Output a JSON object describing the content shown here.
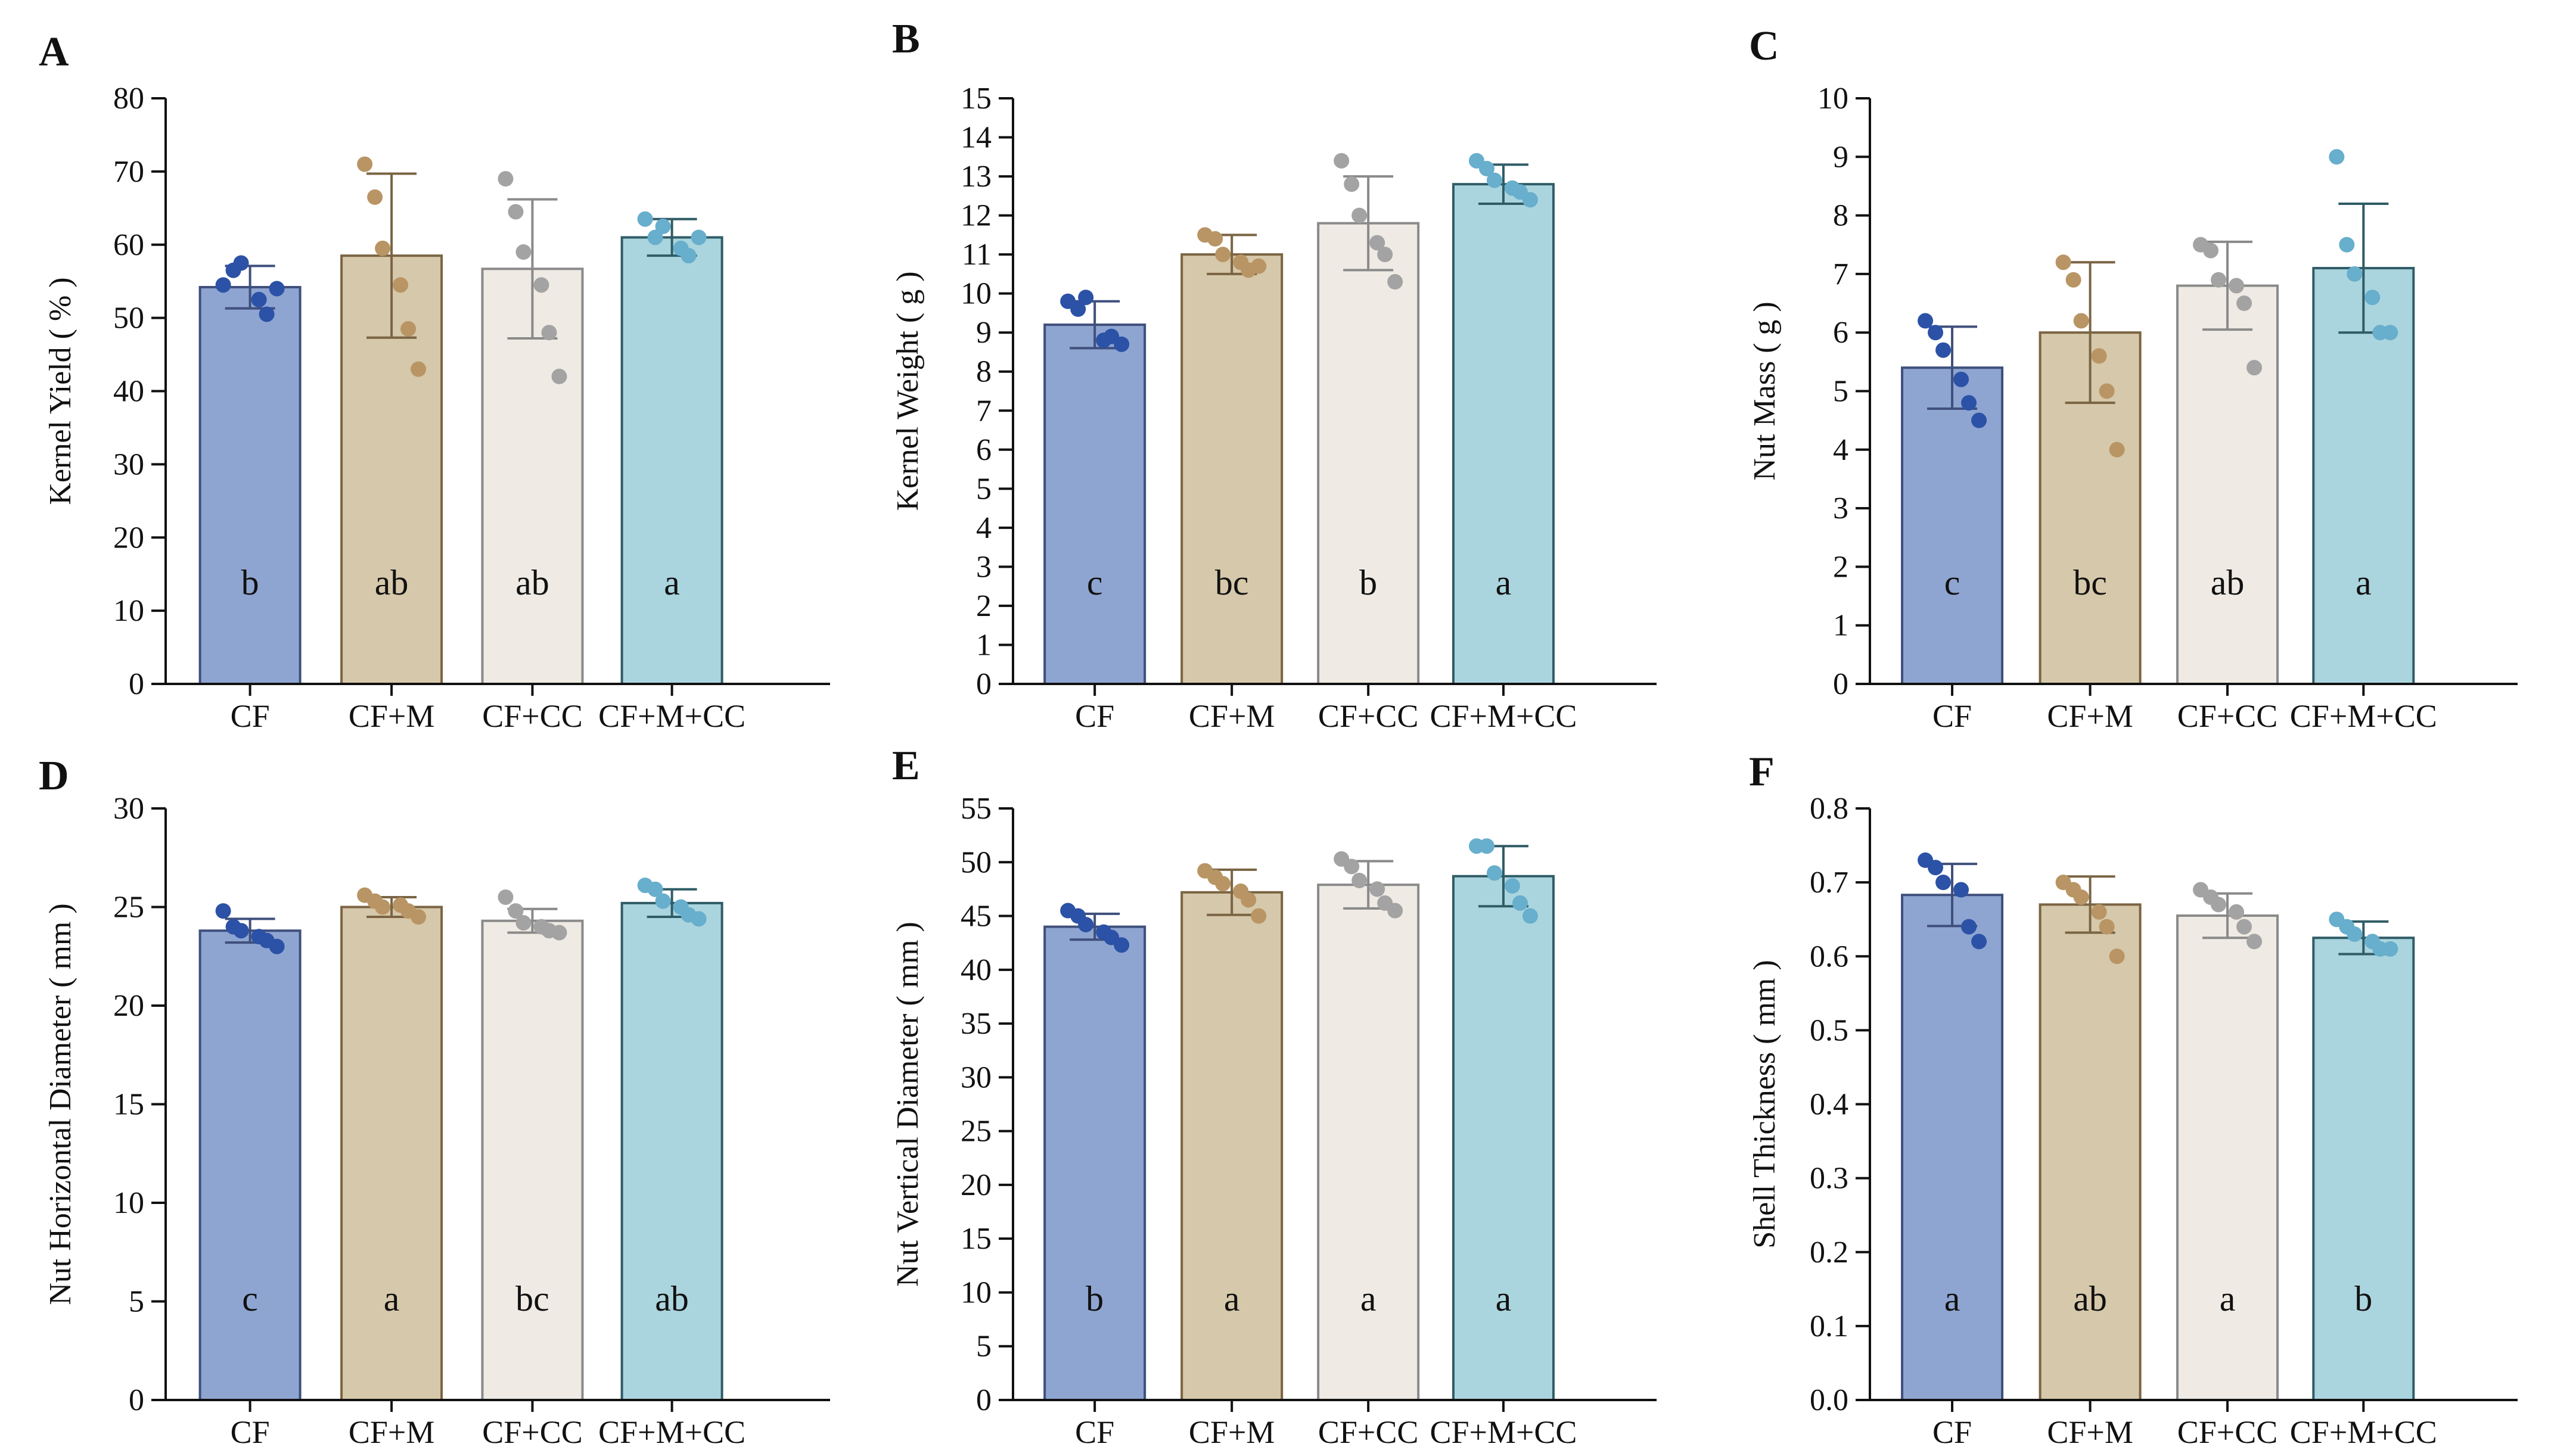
{
  "figure": {
    "groups": [
      "CF",
      "CF+M",
      "CF+CC",
      "CF+M+CC"
    ],
    "colors": {
      "fills": [
        "#8fa5d1",
        "#d6c8aa",
        "#efebe4",
        "#abd5de"
      ],
      "strokes": [
        "#3f4f7c",
        "#7a6443",
        "#8a8a8a",
        "#2f5c66"
      ],
      "dots": [
        "#2b52a6",
        "#b99565",
        "#a3a3a3",
        "#68aecd"
      ],
      "axis": "#111111"
    }
  },
  "chart_data": [
    {
      "panel": "A",
      "type": "bar",
      "ylabel": "Kernel Yield ( % )",
      "ylim": [
        0,
        80
      ],
      "yticks": [
        0,
        10,
        20,
        30,
        40,
        50,
        60,
        70,
        80
      ],
      "tick_decimals": 0,
      "categories": [
        "CF",
        "CF+M",
        "CF+CC",
        "CF+M+CC"
      ],
      "values": [
        54.2,
        58.5,
        56.7,
        61.0
      ],
      "errors": [
        2.9,
        11.2,
        9.5,
        2.5
      ],
      "letters": [
        "b",
        "ab",
        "ab",
        "a"
      ],
      "points": [
        [
          54.5,
          56.5,
          57.5,
          52.5,
          50.5,
          54.0
        ],
        [
          71.0,
          66.5,
          59.5,
          54.5,
          48.5,
          43.0
        ],
        [
          69.0,
          64.5,
          59.0,
          54.5,
          48.0,
          42.0
        ],
        [
          63.5,
          61.0,
          62.5,
          59.5,
          58.5,
          61.0
        ]
      ]
    },
    {
      "panel": "B",
      "type": "bar",
      "ylabel": "Kernel Weight ( g )",
      "ylim": [
        0,
        15
      ],
      "yticks": [
        0,
        1,
        2,
        3,
        4,
        5,
        6,
        7,
        8,
        9,
        10,
        11,
        12,
        13,
        14,
        15
      ],
      "tick_decimals": 0,
      "categories": [
        "CF",
        "CF+M",
        "CF+CC",
        "CF+M+CC"
      ],
      "values": [
        9.2,
        11.0,
        11.8,
        12.8
      ],
      "errors": [
        0.6,
        0.5,
        1.2,
        0.5
      ],
      "letters": [
        "c",
        "bc",
        "b",
        "a"
      ],
      "points": [
        [
          9.8,
          9.6,
          9.9,
          8.8,
          8.9,
          8.7
        ],
        [
          11.5,
          11.4,
          11.0,
          10.8,
          10.6,
          10.7
        ],
        [
          13.4,
          12.8,
          12.0,
          11.3,
          11.0,
          10.3
        ],
        [
          13.4,
          13.2,
          12.9,
          12.7,
          12.6,
          12.4
        ]
      ]
    },
    {
      "panel": "C",
      "type": "bar",
      "ylabel": "Nut Mass ( g )",
      "ylim": [
        0,
        10
      ],
      "yticks": [
        0,
        1,
        2,
        3,
        4,
        5,
        6,
        7,
        8,
        9,
        10
      ],
      "tick_decimals": 0,
      "categories": [
        "CF",
        "CF+M",
        "CF+CC",
        "CF+M+CC"
      ],
      "values": [
        5.4,
        6.0,
        6.8,
        7.1
      ],
      "errors": [
        0.7,
        1.2,
        0.75,
        1.1
      ],
      "letters": [
        "c",
        "bc",
        "ab",
        "a"
      ],
      "points": [
        [
          6.2,
          6.0,
          5.7,
          5.2,
          4.8,
          4.5
        ],
        [
          7.2,
          6.9,
          6.2,
          5.6,
          5.0,
          4.0
        ],
        [
          7.5,
          7.4,
          6.9,
          6.8,
          6.5,
          5.4
        ],
        [
          9.0,
          7.5,
          7.0,
          6.6,
          6.0,
          6.0
        ]
      ]
    },
    {
      "panel": "D",
      "type": "bar",
      "ylabel": "Nut Horizontal Diameter ( mm )",
      "ylim": [
        0,
        30
      ],
      "yticks": [
        0,
        5,
        10,
        15,
        20,
        25,
        30
      ],
      "tick_decimals": 0,
      "categories": [
        "CF",
        "CF+M",
        "CF+CC",
        "CF+M+CC"
      ],
      "values": [
        23.8,
        25.0,
        24.3,
        25.2
      ],
      "errors": [
        0.6,
        0.5,
        0.6,
        0.7
      ],
      "letters": [
        "c",
        "a",
        "bc",
        "ab"
      ],
      "points": [
        [
          24.8,
          24.0,
          23.8,
          23.5,
          23.3,
          23.0
        ],
        [
          25.6,
          25.3,
          25.0,
          25.1,
          24.8,
          24.5
        ],
        [
          25.5,
          24.8,
          24.2,
          24.0,
          23.8,
          23.7
        ],
        [
          26.1,
          25.9,
          25.3,
          25.0,
          24.6,
          24.4
        ]
      ]
    },
    {
      "panel": "E",
      "type": "bar",
      "ylabel": "Nut Vertical Diameter ( mm )",
      "ylim": [
        0,
        55
      ],
      "yticks": [
        0,
        5,
        10,
        15,
        20,
        25,
        30,
        35,
        40,
        45,
        50,
        55
      ],
      "tick_decimals": 0,
      "categories": [
        "CF",
        "CF+M",
        "CF+CC",
        "CF+M+CC"
      ],
      "values": [
        44.0,
        47.2,
        47.9,
        48.7
      ],
      "errors": [
        1.2,
        2.1,
        2.2,
        2.8
      ],
      "letters": [
        "b",
        "a",
        "a",
        "a"
      ],
      "points": [
        [
          45.5,
          45.0,
          44.2,
          43.5,
          43.0,
          42.3
        ],
        [
          49.2,
          48.6,
          48.0,
          47.3,
          46.5,
          45.0
        ],
        [
          50.3,
          49.6,
          48.3,
          47.5,
          46.2,
          45.5
        ],
        [
          51.5,
          51.5,
          49.0,
          47.8,
          46.2,
          45.0
        ]
      ]
    },
    {
      "panel": "F",
      "type": "bar",
      "ylabel": "Shell Thickness ( mm )",
      "ylim": [
        0,
        0.8
      ],
      "yticks": [
        0,
        0.1,
        0.2,
        0.3,
        0.4,
        0.5,
        0.6,
        0.7,
        0.8
      ],
      "tick_decimals": 1,
      "categories": [
        "CF",
        "CF+M",
        "CF+CC",
        "CF+M+CC"
      ],
      "values": [
        0.683,
        0.67,
        0.655,
        0.625
      ],
      "errors": [
        0.042,
        0.038,
        0.03,
        0.022
      ],
      "letters": [
        "a",
        "ab",
        "a",
        "b"
      ],
      "points": [
        [
          0.73,
          0.72,
          0.7,
          0.69,
          0.64,
          0.62
        ],
        [
          0.7,
          0.69,
          0.68,
          0.66,
          0.64,
          0.6
        ],
        [
          0.69,
          0.68,
          0.67,
          0.66,
          0.64,
          0.62
        ],
        [
          0.65,
          0.64,
          0.63,
          0.62,
          0.61,
          0.61
        ]
      ]
    }
  ]
}
